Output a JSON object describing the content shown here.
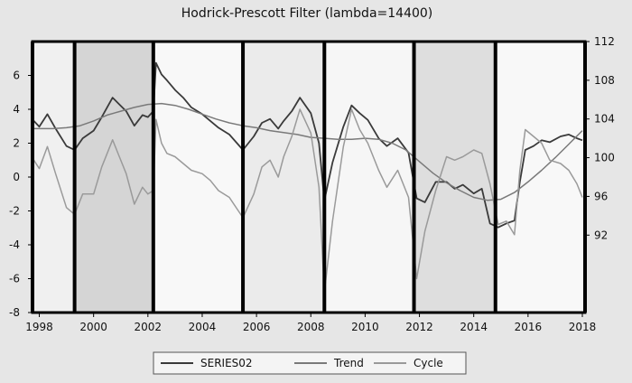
{
  "chart_data": {
    "type": "line",
    "title": "Hodrick-Prescott Filter (lambda=14400)",
    "xlim": [
      1997.75,
      2018.1
    ],
    "left_axis": {
      "ylim": [
        -8,
        8
      ],
      "ticks": [
        -8,
        -6,
        -4,
        -2,
        0,
        2,
        4,
        6
      ]
    },
    "right_axis": {
      "ylim": [
        84,
        112
      ],
      "ticks": [
        92,
        96,
        100,
        104,
        108,
        112
      ]
    },
    "x_ticks": [
      1998,
      2000,
      2002,
      2004,
      2006,
      2008,
      2010,
      2012,
      2014,
      2016,
      2018
    ],
    "x_tick_labels": [
      "1998",
      "2000",
      "2002",
      "2004",
      "2006",
      "2008",
      "2010",
      "2012",
      "2014",
      "2016",
      "2018"
    ],
    "vertical_markers": [
      1997.75,
      1999.3,
      2002.2,
      2005.5,
      2008.5,
      2011.8,
      2014.8,
      2018.1
    ],
    "band_shades": [
      "#f0f0f0",
      "#d5d5d5",
      "#f8f8f8",
      "#ebebeb",
      "#f6f6f6",
      "#dedede",
      "#f8f8f8"
    ],
    "legend": {
      "placement": "bottom",
      "entries": [
        "SERIES02",
        "Trend",
        "Cycle"
      ]
    },
    "series": [
      {
        "name": "SERIES02",
        "axis": "right",
        "color": "#3a3a3a",
        "x": [
          1997.8,
          1998.0,
          1998.3,
          1998.6,
          1999.0,
          1999.3,
          1999.6,
          2000.0,
          2000.3,
          2000.7,
          2000.95,
          2001.2,
          2001.5,
          2001.8,
          2002.0,
          2002.2,
          2002.3,
          2002.5,
          2002.7,
          2003.0,
          2003.3,
          2003.6,
          2004.0,
          2004.3,
          2004.6,
          2005.0,
          2005.5,
          2005.9,
          2006.2,
          2006.5,
          2006.8,
          2007.0,
          2007.3,
          2007.6,
          2008.0,
          2008.3,
          2008.5,
          2008.8,
          2009.2,
          2009.5,
          2009.8,
          2010.1,
          2010.5,
          2010.8,
          2011.2,
          2011.6,
          2011.9,
          2012.2,
          2012.6,
          2013.0,
          2013.3,
          2013.6,
          2014.0,
          2014.3,
          2014.6,
          2014.9,
          2015.2,
          2015.5,
          2015.7,
          2015.9,
          2016.2,
          2016.5,
          2016.8,
          2017.2,
          2017.5,
          2017.8,
          2018.0
        ],
        "values": [
          103.8,
          103.2,
          104.5,
          103.0,
          101.2,
          100.8,
          102.0,
          102.8,
          104.2,
          106.2,
          105.5,
          104.8,
          103.3,
          104.4,
          104.2,
          104.8,
          109.8,
          108.6,
          108.0,
          107.0,
          106.2,
          105.2,
          104.5,
          103.8,
          103.1,
          102.4,
          100.8,
          102.2,
          103.6,
          104.0,
          103.0,
          103.8,
          104.8,
          106.2,
          104.6,
          101.5,
          95.6,
          99.5,
          103.2,
          105.4,
          104.6,
          103.9,
          102.0,
          101.2,
          102.0,
          100.5,
          95.8,
          95.4,
          97.5,
          97.5,
          96.8,
          97.2,
          96.3,
          96.8,
          93.2,
          92.8,
          93.2,
          93.5,
          97.5,
          100.8,
          101.2,
          101.8,
          101.6,
          102.2,
          102.4,
          102.0,
          101.8
        ]
      },
      {
        "name": "Trend",
        "axis": "right",
        "color": "#7a7a7a",
        "x": [
          1997.8,
          1998.5,
          1999.0,
          1999.5,
          2000.0,
          2000.5,
          2001.0,
          2001.5,
          2002.0,
          2002.5,
          2003.0,
          2003.5,
          2004.0,
          2004.5,
          2005.0,
          2005.5,
          2006.0,
          2006.5,
          2007.0,
          2007.5,
          2008.0,
          2008.5,
          2009.0,
          2009.5,
          2010.0,
          2010.5,
          2011.0,
          2011.5,
          2012.0,
          2012.5,
          2013.0,
          2013.5,
          2014.0,
          2014.5,
          2015.0,
          2015.5,
          2016.0,
          2016.5,
          2017.0,
          2017.5,
          2018.0
        ],
        "values": [
          103.0,
          103.0,
          103.1,
          103.3,
          103.8,
          104.4,
          104.8,
          105.2,
          105.5,
          105.6,
          105.4,
          105.0,
          104.5,
          104.0,
          103.6,
          103.3,
          103.1,
          102.8,
          102.6,
          102.4,
          102.1,
          102.0,
          101.9,
          101.9,
          102.0,
          101.9,
          101.5,
          100.8,
          99.6,
          98.4,
          97.4,
          96.6,
          95.9,
          95.6,
          95.7,
          96.4,
          97.5,
          98.7,
          100.0,
          101.4,
          102.8
        ]
      },
      {
        "name": "Cycle",
        "axis": "left",
        "color": "#9a9a9a",
        "x": [
          1997.8,
          1998.0,
          1998.3,
          1998.6,
          1999.0,
          1999.3,
          1999.6,
          2000.0,
          2000.3,
          2000.7,
          2000.95,
          2001.2,
          2001.5,
          2001.8,
          2002.0,
          2002.2,
          2002.3,
          2002.5,
          2002.7,
          2003.0,
          2003.3,
          2003.6,
          2004.0,
          2004.3,
          2004.6,
          2005.0,
          2005.5,
          2005.9,
          2006.2,
          2006.5,
          2006.8,
          2007.0,
          2007.3,
          2007.6,
          2008.0,
          2008.3,
          2008.5,
          2008.8,
          2009.2,
          2009.5,
          2009.8,
          2010.1,
          2010.5,
          2010.8,
          2011.2,
          2011.6,
          2011.9,
          2012.2,
          2012.6,
          2013.0,
          2013.3,
          2013.6,
          2014.0,
          2014.3,
          2014.6,
          2014.9,
          2015.2,
          2015.5,
          2015.7,
          2015.9,
          2016.2,
          2016.5,
          2016.8,
          2017.2,
          2017.5,
          2017.8,
          2018.0
        ],
        "values": [
          1.0,
          0.5,
          1.8,
          0.2,
          -1.8,
          -2.2,
          -1.0,
          -1.0,
          0.6,
          2.2,
          1.2,
          0.2,
          -1.6,
          -0.6,
          -1.0,
          -0.8,
          3.4,
          2.0,
          1.4,
          1.2,
          0.8,
          0.4,
          0.2,
          -0.2,
          -0.8,
          -1.2,
          -2.4,
          -1.0,
          0.6,
          1.0,
          0.0,
          1.2,
          2.4,
          4.0,
          2.6,
          -0.6,
          -6.8,
          -2.6,
          1.8,
          4.0,
          2.8,
          2.0,
          0.4,
          -0.6,
          0.4,
          -1.2,
          -6.0,
          -3.2,
          -0.8,
          1.2,
          1.0,
          1.2,
          1.6,
          1.4,
          -0.4,
          -2.8,
          -2.6,
          -3.4,
          0.4,
          2.8,
          2.4,
          2.0,
          1.0,
          0.8,
          0.4,
          -0.4,
          -1.2
        ]
      }
    ]
  }
}
